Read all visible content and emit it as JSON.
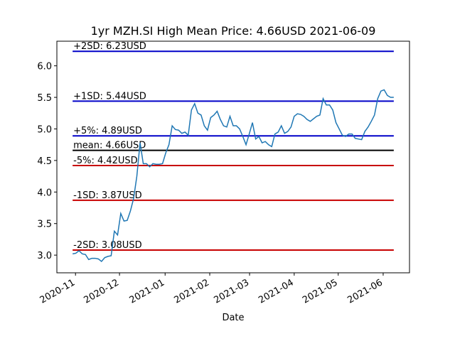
{
  "chart_data": {
    "type": "line",
    "title": "1yr MZH.SI High Mean Price: 4.66USD 2021-06-09",
    "x_label": "Date",
    "series": [
      {
        "color": "#1f77b4",
        "values": [
          3.02,
          3.03,
          3.07,
          3.02,
          3.01,
          2.93,
          2.95,
          2.95,
          2.94,
          2.9,
          2.96,
          2.98,
          2.99,
          3.38,
          3.32,
          3.66,
          3.54,
          3.55,
          3.7,
          3.9,
          4.25,
          4.78,
          4.45,
          4.45,
          4.4,
          4.45,
          4.44,
          4.44,
          4.45,
          4.62,
          4.75,
          5.05,
          4.99,
          4.98,
          4.93,
          4.95,
          4.9,
          5.3,
          5.4,
          5.25,
          5.22,
          5.05,
          4.98,
          5.18,
          5.22,
          5.28,
          5.15,
          5.05,
          5.03,
          5.2,
          5.05,
          5.05,
          5.0,
          4.88,
          4.75,
          4.92,
          5.1,
          4.84,
          4.88,
          4.78,
          4.8,
          4.75,
          4.72,
          4.92,
          4.95,
          5.05,
          4.93,
          4.96,
          5.03,
          5.2,
          5.24,
          5.23,
          5.2,
          5.15,
          5.12,
          5.16,
          5.2,
          5.22,
          5.48,
          5.38,
          5.38,
          5.3,
          5.1,
          5.0,
          4.9,
          4.88,
          4.92,
          4.92,
          4.85,
          4.84,
          4.83,
          4.96,
          5.03,
          5.12,
          5.22,
          5.48,
          5.6,
          5.62,
          5.53,
          5.5,
          5.5
        ]
      }
    ],
    "levels": [
      {
        "label": "+2SD: 6.23USD",
        "value": 6.23,
        "color": "#0000c8"
      },
      {
        "label": "+1SD: 5.44USD",
        "value": 5.44,
        "color": "#0000c8"
      },
      {
        "label": "+5%: 4.89USD",
        "value": 4.89,
        "color": "#0000c8"
      },
      {
        "label": "mean: 4.66USD",
        "value": 4.66,
        "color": "#000000"
      },
      {
        "label": "-5%: 4.42USD",
        "value": 4.42,
        "color": "#c80000"
      },
      {
        "label": "-1SD: 3.87USD",
        "value": 3.87,
        "color": "#c80000"
      },
      {
        "label": "-2SD: 3.08USD",
        "value": 3.08,
        "color": "#c80000"
      }
    ],
    "xlim": [
      -4.9,
      104.9
    ],
    "xticks": [
      {
        "value": 0.9,
        "label": "2020-11"
      },
      {
        "value": 14.6,
        "label": "2020-12"
      },
      {
        "value": 28.8,
        "label": "2021-01"
      },
      {
        "value": 42.7,
        "label": "2021-02"
      },
      {
        "value": 55.1,
        "label": "2021-03"
      },
      {
        "value": 69.0,
        "label": "2021-04"
      },
      {
        "value": 82.7,
        "label": "2021-05"
      },
      {
        "value": 96.7,
        "label": "2021-06"
      }
    ],
    "ylim": [
      2.72,
      6.39
    ],
    "yticks": [
      {
        "value": 3,
        "label": "3.0"
      },
      {
        "value": 3.5,
        "label": "3.5"
      },
      {
        "value": 4,
        "label": "4.0"
      },
      {
        "value": 4.5,
        "label": "4.5"
      },
      {
        "value": 5,
        "label": "5.0"
      },
      {
        "value": 5.5,
        "label": "5.5"
      },
      {
        "value": 6,
        "label": "6.0"
      }
    ]
  }
}
